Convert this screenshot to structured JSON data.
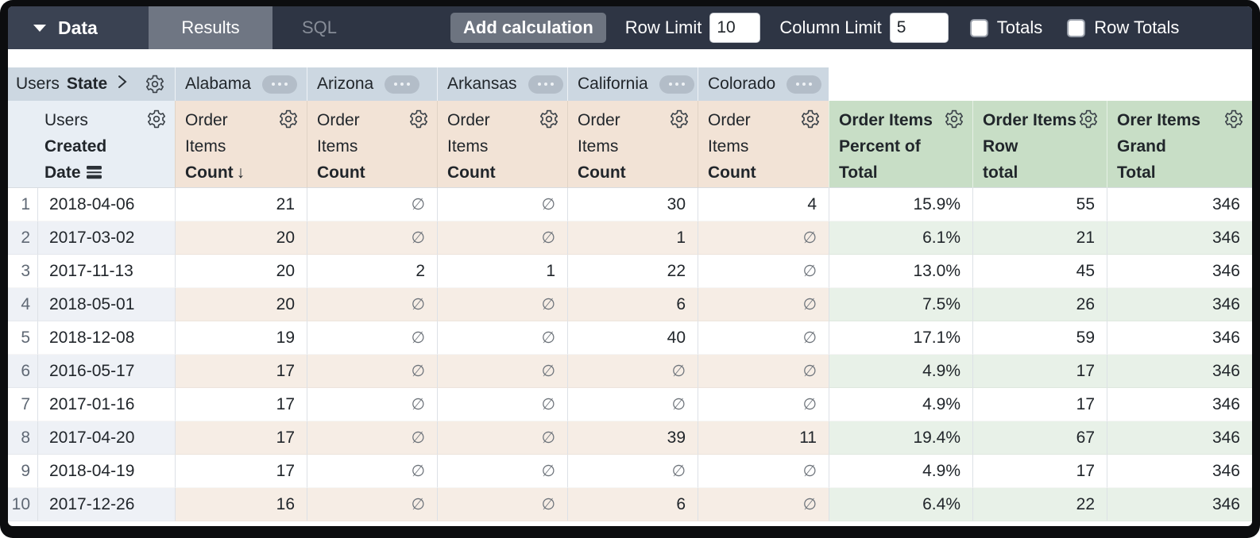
{
  "toolbar": {
    "data_label": "Data",
    "tabs": [
      {
        "label": "Results",
        "active": true
      },
      {
        "label": "SQL",
        "active": false
      }
    ],
    "add_calculation_label": "Add calculation",
    "row_limit_label": "Row Limit",
    "row_limit_value": "10",
    "column_limit_label": "Column Limit",
    "column_limit_value": "5",
    "totals_label": "Totals",
    "totals_checked": false,
    "row_totals_label": "Row Totals",
    "row_totals_checked": false
  },
  "pivot": {
    "view": "Users",
    "field": "State",
    "values": [
      "Alabama",
      "Arizona",
      "Arkansas",
      "California",
      "Colorado"
    ]
  },
  "headers": {
    "dimension": {
      "view": "Users",
      "field_line1": "Created",
      "field_line2": "Date"
    },
    "measure": {
      "view_line1": "Order",
      "view_line2": "Items",
      "field": "Count",
      "sort_arrow": "↓",
      "sorted_pivot_value": "Alabama"
    },
    "calcs": [
      {
        "lines": [
          "Order Items",
          "Percent of",
          "Total"
        ]
      },
      {
        "lines": [
          "Order Items",
          "Row",
          "total"
        ]
      },
      {
        "lines": [
          "Orer Items",
          "Grand",
          "Total"
        ]
      }
    ]
  },
  "null_symbol": "∅",
  "rows": [
    {
      "n": "1",
      "date": "2018-04-06",
      "values": [
        "21",
        "∅",
        "∅",
        "30",
        "4"
      ],
      "calc_values": [
        "15.9%",
        "55",
        "346"
      ]
    },
    {
      "n": "2",
      "date": "2017-03-02",
      "values": [
        "20",
        "∅",
        "∅",
        "1",
        "∅"
      ],
      "calc_values": [
        "6.1%",
        "21",
        "346"
      ]
    },
    {
      "n": "3",
      "date": "2017-11-13",
      "values": [
        "20",
        "2",
        "1",
        "22",
        "∅"
      ],
      "calc_values": [
        "13.0%",
        "45",
        "346"
      ]
    },
    {
      "n": "4",
      "date": "2018-05-01",
      "values": [
        "20",
        "∅",
        "∅",
        "6",
        "∅"
      ],
      "calc_values": [
        "7.5%",
        "26",
        "346"
      ]
    },
    {
      "n": "5",
      "date": "2018-12-08",
      "values": [
        "19",
        "∅",
        "∅",
        "40",
        "∅"
      ],
      "calc_values": [
        "17.1%",
        "59",
        "346"
      ]
    },
    {
      "n": "6",
      "date": "2016-05-17",
      "values": [
        "17",
        "∅",
        "∅",
        "∅",
        "∅"
      ],
      "calc_values": [
        "4.9%",
        "17",
        "346"
      ]
    },
    {
      "n": "7",
      "date": "2017-01-16",
      "values": [
        "17",
        "∅",
        "∅",
        "∅",
        "∅"
      ],
      "calc_values": [
        "4.9%",
        "17",
        "346"
      ]
    },
    {
      "n": "8",
      "date": "2017-04-20",
      "values": [
        "17",
        "∅",
        "∅",
        "39",
        "11"
      ],
      "calc_values": [
        "19.4%",
        "67",
        "346"
      ]
    },
    {
      "n": "9",
      "date": "2018-04-19",
      "values": [
        "17",
        "∅",
        "∅",
        "∅",
        "∅"
      ],
      "calc_values": [
        "4.9%",
        "17",
        "346"
      ]
    },
    {
      "n": "10",
      "date": "2017-12-26",
      "values": [
        "16",
        "∅",
        "∅",
        "6",
        "∅"
      ],
      "calc_values": [
        "6.4%",
        "22",
        "346"
      ]
    }
  ],
  "icons": {
    "settings": "gear-icon",
    "more_options": "ellipsis-pill-icon",
    "pivot_expand": "chevron-right-icon",
    "data_menu": "caret-down-icon",
    "date_field_type": "date-layers-icon"
  },
  "colors": {
    "toolbar_bg": "#2e3544",
    "active_tab_bg": "#6f7683",
    "pivot_header_bg": "#ccd7e1",
    "dimension_header_bg": "#e8eef4",
    "measure_header_bg": "#f2e3d6",
    "calc_header_bg": "#c8dec6",
    "even_row_dim": "#eef1f6",
    "even_row_measure": "#f6ede5",
    "even_row_calc": "#e8f1e8"
  }
}
